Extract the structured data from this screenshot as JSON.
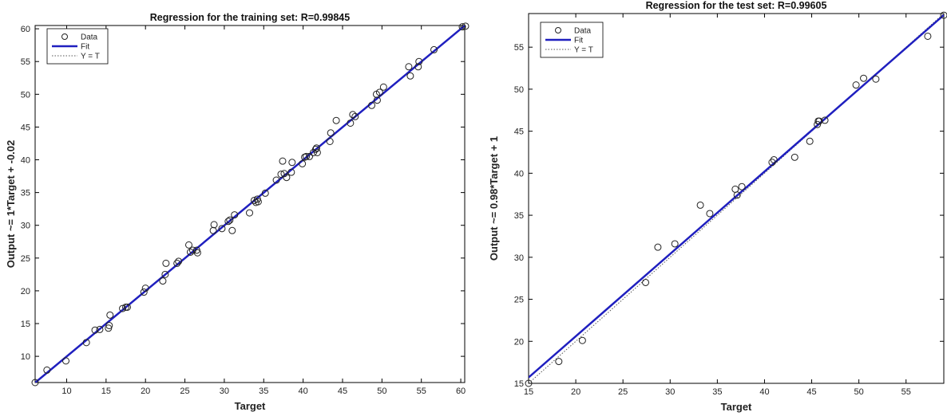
{
  "colors": {
    "fit": "#1f1fbf",
    "data_marker": "#222222",
    "identity": "#555555",
    "axes": "#000000"
  },
  "chart_data": [
    {
      "type": "scatter",
      "title": "Regression for the training set: R=0.99845",
      "xlabel": "Target",
      "ylabel": "Output ~= 1*Target + -0.02",
      "xlim": [
        6,
        60.5
      ],
      "ylim": [
        6,
        60.5
      ],
      "xticks": [
        10,
        15,
        20,
        25,
        30,
        35,
        40,
        45,
        50,
        55,
        60
      ],
      "yticks": [
        10,
        15,
        20,
        25,
        30,
        35,
        40,
        45,
        50,
        55,
        60
      ],
      "grid": false,
      "legend": {
        "position": "top-left",
        "entries": [
          "Data",
          "Fit",
          "Y = T"
        ]
      },
      "fit": {
        "slope": 1,
        "intercept": -0.02
      },
      "series": [
        {
          "name": "Data",
          "x": [
            6.0,
            7.5,
            9.9,
            12.5,
            13.6,
            14.2,
            15.3,
            15.4,
            15.5,
            17.1,
            17.5,
            17.7,
            19.8,
            20.0,
            22.2,
            22.5,
            22.6,
            24.0,
            24.2,
            25.5,
            25.7,
            26.0,
            26.5,
            26.6,
            28.6,
            28.7,
            29.7,
            30.5,
            30.7,
            31.0,
            31.3,
            33.2,
            33.8,
            34.0,
            34.2,
            34.3,
            35.2,
            36.6,
            37.2,
            37.4,
            37.6,
            37.9,
            38.5,
            38.6,
            39.9,
            40.2,
            40.4,
            40.8,
            41.3,
            41.6,
            41.7,
            41.8,
            43.4,
            43.5,
            44.2,
            46.0,
            46.3,
            46.6,
            48.7,
            49.3,
            49.4,
            49.7,
            50.2,
            53.4,
            53.6,
            54.6,
            54.7,
            56.6,
            60.2,
            60.6
          ],
          "y": [
            6.0,
            7.9,
            9.3,
            12.1,
            14.0,
            14.1,
            14.3,
            14.7,
            16.3,
            17.3,
            17.5,
            17.5,
            19.8,
            20.4,
            21.5,
            22.5,
            24.2,
            24.2,
            24.5,
            27.0,
            25.9,
            26.2,
            26.2,
            25.8,
            29.2,
            30.1,
            29.5,
            30.6,
            30.8,
            29.2,
            31.6,
            31.9,
            33.8,
            33.5,
            34.0,
            33.6,
            34.9,
            36.9,
            37.8,
            39.8,
            37.9,
            37.3,
            38.1,
            39.6,
            39.4,
            40.4,
            40.5,
            40.5,
            41.1,
            41.6,
            41.8,
            41.1,
            42.8,
            44.1,
            46.0,
            45.6,
            46.9,
            46.6,
            48.3,
            50.0,
            49.1,
            50.3,
            51.1,
            54.2,
            52.8,
            54.2,
            55.0,
            56.8,
            60.3,
            60.4
          ]
        }
      ]
    },
    {
      "type": "scatter",
      "title": "Regression for the test set: R=0.99605",
      "xlabel": "Target",
      "ylabel": "Output ~= 0.98*Target + 1",
      "xlim": [
        15,
        59
      ],
      "ylim": [
        15,
        59
      ],
      "xticks": [
        15,
        20,
        25,
        30,
        35,
        40,
        45,
        50,
        55
      ],
      "yticks": [
        15,
        20,
        25,
        30,
        35,
        40,
        45,
        50,
        55
      ],
      "grid": false,
      "legend": {
        "position": "top-left",
        "entries": [
          "Data",
          "Fit",
          "Y = T"
        ]
      },
      "fit": {
        "slope": 0.98,
        "intercept": 1
      },
      "series": [
        {
          "name": "Data",
          "x": [
            15.0,
            18.2,
            20.7,
            27.4,
            28.7,
            30.5,
            33.2,
            34.2,
            36.9,
            37.1,
            37.6,
            40.8,
            41.0,
            43.2,
            44.8,
            45.6,
            45.7,
            45.8,
            46.4,
            49.7,
            50.5,
            51.8,
            57.3,
            59.0
          ],
          "y": [
            15.0,
            17.6,
            20.1,
            27.0,
            31.2,
            31.6,
            36.2,
            35.2,
            38.1,
            37.4,
            38.4,
            41.3,
            41.6,
            41.9,
            43.8,
            45.8,
            46.2,
            46.2,
            46.3,
            50.5,
            51.3,
            51.2,
            56.3,
            58.8
          ]
        }
      ]
    }
  ]
}
